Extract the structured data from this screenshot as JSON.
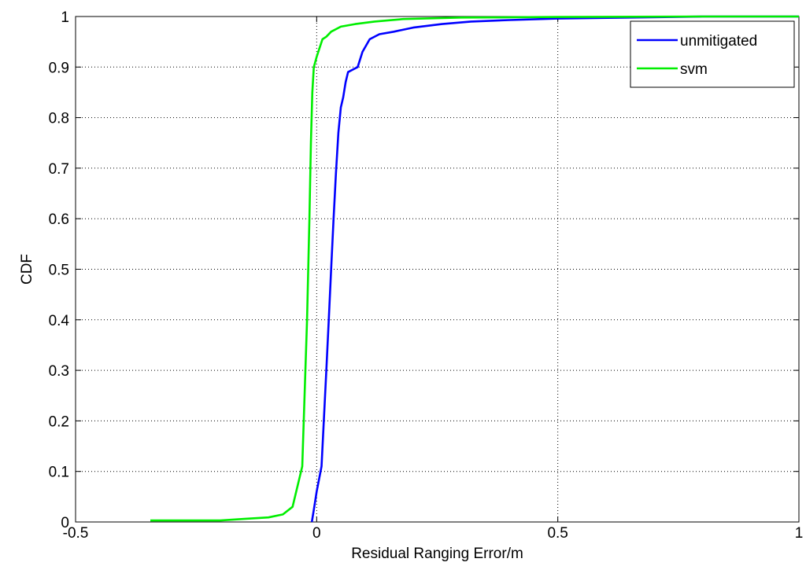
{
  "chart_data": {
    "type": "line",
    "title": "",
    "xlabel": "Residual Ranging Error/m",
    "ylabel": "CDF",
    "xlim": [
      -0.5,
      1
    ],
    "ylim": [
      0,
      1
    ],
    "xticks": [
      -0.5,
      0,
      0.5,
      1
    ],
    "xtick_labels": [
      "-0.5",
      "0",
      "0.5",
      "1"
    ],
    "yticks": [
      0,
      0.1,
      0.2,
      0.3,
      0.4,
      0.5,
      0.6,
      0.7,
      0.8,
      0.9,
      1
    ],
    "ytick_labels": [
      "0",
      "0.1",
      "0.2",
      "0.3",
      "0.4",
      "0.5",
      "0.6",
      "0.7",
      "0.8",
      "0.9",
      "1"
    ],
    "grid": true,
    "legend_position": "top-right",
    "series": [
      {
        "name": "unmitigated",
        "color": "#0000ff",
        "x": [
          -0.01,
          -0.005,
          0.0,
          0.01,
          0.02,
          0.025,
          0.03,
          0.035,
          0.04,
          0.045,
          0.05,
          0.055,
          0.06,
          0.065,
          0.075,
          0.085,
          0.095,
          0.11,
          0.13,
          0.16,
          0.2,
          0.26,
          0.32,
          0.4,
          0.5,
          0.65,
          0.8,
          1.0
        ],
        "y": [
          0.0,
          0.03,
          0.06,
          0.11,
          0.3,
          0.4,
          0.5,
          0.6,
          0.69,
          0.77,
          0.82,
          0.84,
          0.87,
          0.89,
          0.895,
          0.9,
          0.93,
          0.955,
          0.965,
          0.97,
          0.978,
          0.985,
          0.99,
          0.993,
          0.996,
          0.998,
          1.0,
          1.0
        ]
      },
      {
        "name": "svm",
        "color": "#00ee00",
        "x": [
          -0.345,
          -0.25,
          -0.2,
          -0.15,
          -0.1,
          -0.07,
          -0.05,
          -0.03,
          -0.02,
          -0.015,
          -0.012,
          -0.009,
          -0.006,
          -0.003,
          0.0,
          0.005,
          0.012,
          0.02,
          0.03,
          0.05,
          0.08,
          0.12,
          0.18,
          0.3,
          0.5,
          0.8,
          1.0
        ],
        "y": [
          0.003,
          0.003,
          0.003,
          0.006,
          0.009,
          0.015,
          0.03,
          0.11,
          0.4,
          0.6,
          0.75,
          0.85,
          0.9,
          0.91,
          0.92,
          0.935,
          0.955,
          0.96,
          0.97,
          0.98,
          0.985,
          0.99,
          0.995,
          0.998,
          0.999,
          1.0,
          1.0
        ]
      }
    ]
  }
}
